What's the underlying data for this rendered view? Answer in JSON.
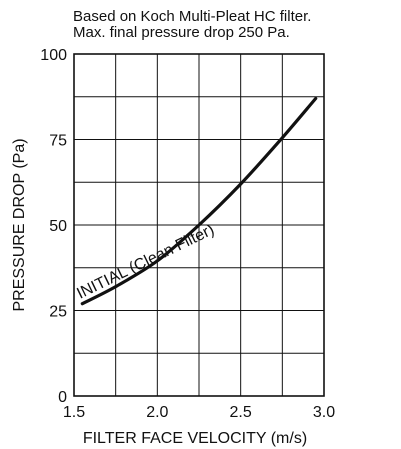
{
  "notes": [
    "Based on Koch Multi-Pleat HC filter.",
    "Max. final pressure drop 250 Pa."
  ],
  "chart_data": {
    "type": "line",
    "xlabel": "FILTER FACE VELOCITY (m/s)",
    "ylabel": "PRESSURE DROP (Pa)",
    "xlim": [
      1.5,
      3.0
    ],
    "ylim": [
      0,
      100
    ],
    "x_major_ticks": [
      1.5,
      2.0,
      2.5,
      3.0
    ],
    "x_tick_labels": [
      "1.5",
      "2.0",
      "2.5",
      "3.0"
    ],
    "y_major_ticks": [
      0,
      25,
      50,
      75,
      100
    ],
    "y_tick_labels": [
      "0",
      "25",
      "50",
      "75",
      "100"
    ],
    "x_grid": [
      1.5,
      1.75,
      2.0,
      2.25,
      2.5,
      2.75,
      3.0
    ],
    "y_grid": [
      0,
      12.5,
      25,
      37.5,
      50,
      62.5,
      75,
      87.5,
      100
    ],
    "grid": true,
    "series": [
      {
        "name": "INITIAL (Clean Filter)",
        "x": [
          1.55,
          1.75,
          2.0,
          2.25,
          2.5,
          2.75,
          2.95
        ],
        "y": [
          27,
          32,
          39.5,
          50,
          62,
          75.5,
          87
        ]
      }
    ]
  }
}
